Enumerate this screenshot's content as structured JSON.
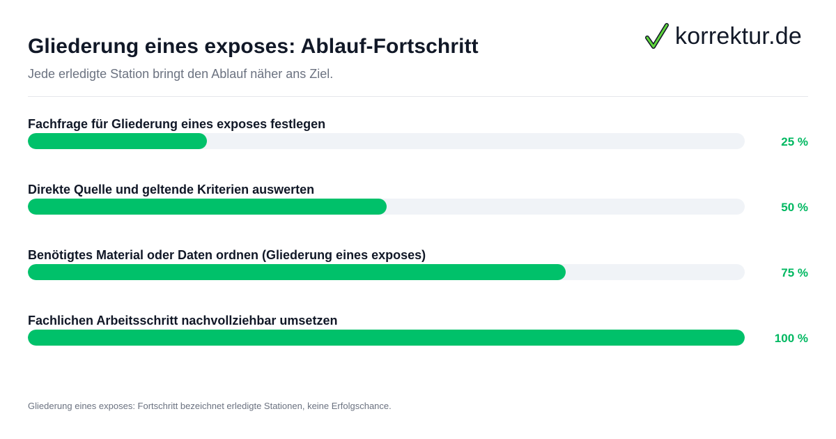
{
  "header": {
    "title": "Gliederung eines exposes: Ablauf-Fortschritt",
    "subtitle": "Jede erledigte Station bringt den Ablauf näher ans Ziel."
  },
  "logo": {
    "text": "korrektur.de",
    "icon": "checkmark-icon",
    "check_color": "#5fd63c"
  },
  "colors": {
    "accent": "#00c16a",
    "track": "#f0f3f7",
    "percent_text": "#00b861"
  },
  "chart_data": {
    "type": "bar",
    "orientation": "horizontal",
    "xlim": [
      0,
      100
    ],
    "categories": [
      "Fachfrage für Gliederung eines exposes festlegen",
      "Direkte Quelle und geltende Kriterien auswerten",
      "Benötigtes Material oder Daten ordnen (Gliederung eines exposes)",
      "Fachlichen Arbeitsschritt nachvollziehbar umsetzen"
    ],
    "values": [
      25,
      50,
      75,
      100
    ],
    "value_labels": [
      "25 %",
      "50 %",
      "75 %",
      "100 %"
    ],
    "grid": false,
    "legend": "none"
  },
  "footer": {
    "note": "Gliederung eines exposes: Fortschritt bezeichnet erledigte Stationen, keine Erfolgschance."
  }
}
